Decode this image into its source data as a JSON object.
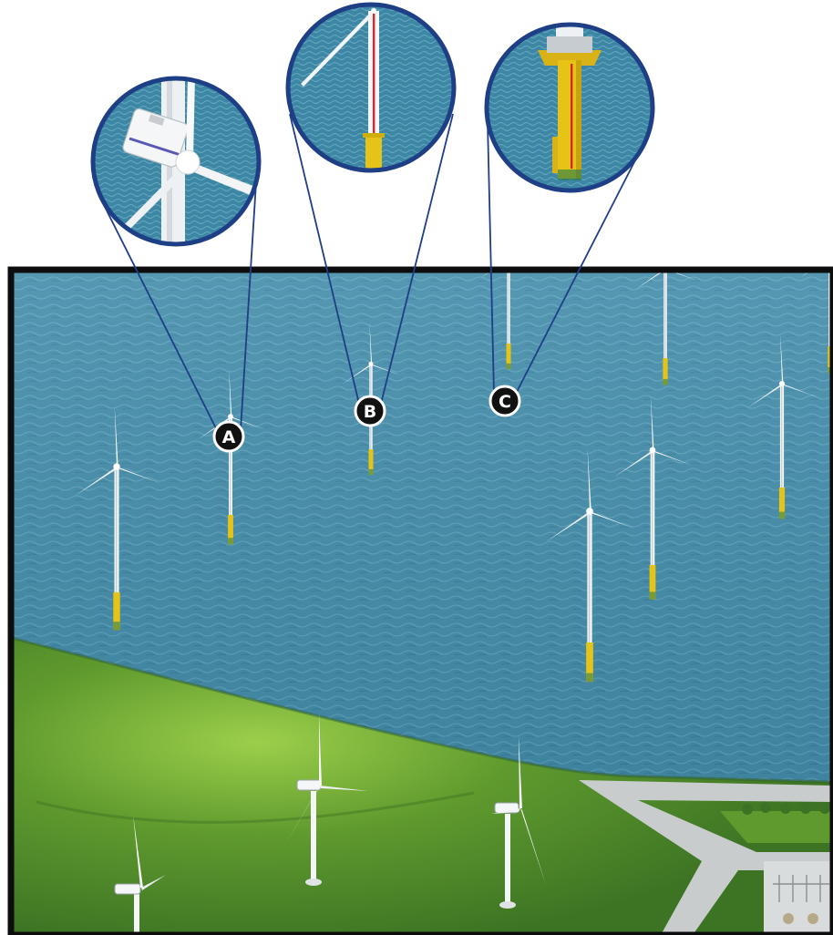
{
  "callouts": [
    {
      "letter": "A",
      "subject": "nacelle-and-rotor"
    },
    {
      "letter": "B",
      "subject": "tower-with-cable"
    },
    {
      "letter": "C",
      "subject": "foundation-monopile"
    }
  ],
  "colors": {
    "frame": "#0d0d0d",
    "sea": "#3f8aa8",
    "sea_light": "#5aa3bf",
    "land": "#4f8a2a",
    "land_light": "#7dbb3c",
    "callout_ring": "#1e3f86",
    "marker_fill": "#111111",
    "foundation": "#e6c417",
    "turbine": "#f4f6f7",
    "cable": "#d8262a",
    "road": "#c9cccc"
  },
  "icons": [
    "wind-turbine-icon",
    "magnifier-callout-icon",
    "marker-badge-icon"
  ]
}
